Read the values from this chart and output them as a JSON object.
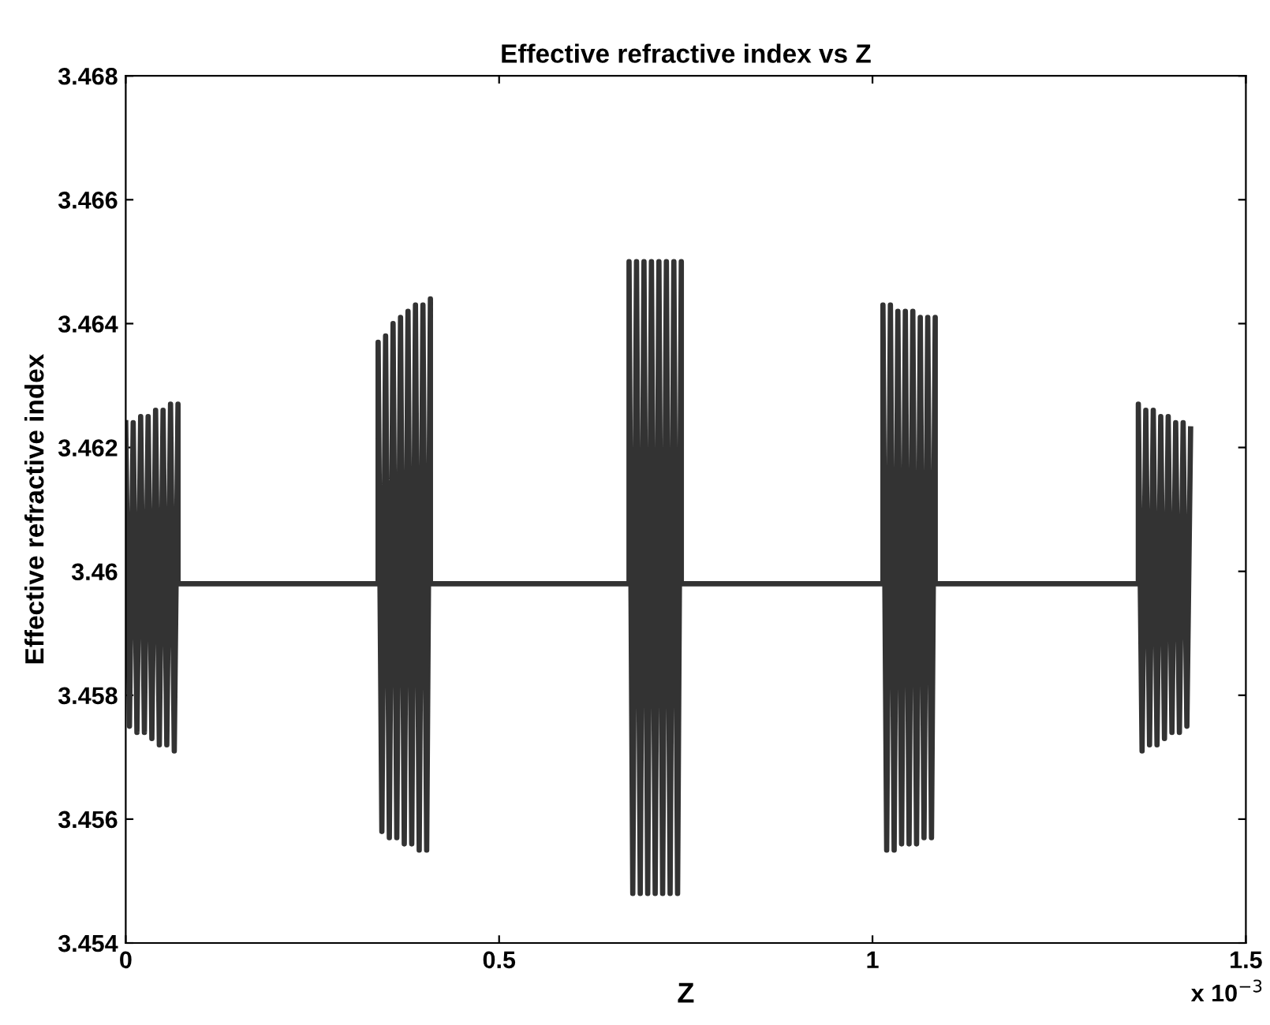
{
  "chart_data": {
    "type": "line",
    "title": "Effective refractive index vs Z",
    "xlabel": "Z",
    "ylabel": "Effective refractive index",
    "annotations": [
      "x 10$^{−3}$"
    ],
    "x": [
      0,
      0.005,
      0.01,
      0.015,
      0.02,
      0.025,
      0.03,
      0.035,
      0.04,
      0.045,
      0.05,
      0.055,
      0.06,
      0.065,
      0.07,
      0.07,
      0.338,
      0.338,
      0.343,
      0.348,
      0.353,
      0.358,
      0.363,
      0.368,
      0.373,
      0.378,
      0.383,
      0.388,
      0.393,
      0.398,
      0.403,
      0.408,
      0.408,
      0.674,
      0.674,
      0.679,
      0.684,
      0.689,
      0.694,
      0.699,
      0.704,
      0.709,
      0.714,
      0.719,
      0.724,
      0.729,
      0.734,
      0.739,
      0.744,
      0.744,
      1.014,
      1.014,
      1.019,
      1.024,
      1.029,
      1.034,
      1.039,
      1.044,
      1.049,
      1.054,
      1.059,
      1.064,
      1.069,
      1.074,
      1.079,
      1.084,
      1.084,
      1.356,
      1.356,
      1.361,
      1.366,
      1.371,
      1.376,
      1.381,
      1.386,
      1.391,
      1.396,
      1.401,
      1.406,
      1.411,
      1.416,
      1.421,
      1.426
    ],
    "series": [
      {
        "color": "#333333",
        "values": [
          3.4624,
          3.4575,
          3.4624,
          3.4574,
          3.4625,
          3.4574,
          3.4625,
          3.4573,
          3.4626,
          3.4572,
          3.4626,
          3.4572,
          3.4627,
          3.4571,
          3.4627,
          3.4598,
          3.4598,
          3.4637,
          3.4558,
          3.4638,
          3.4557,
          3.464,
          3.4557,
          3.4641,
          3.4556,
          3.4642,
          3.4556,
          3.4643,
          3.4555,
          3.4643,
          3.4555,
          3.4644,
          3.4598,
          3.4598,
          3.465,
          3.4548,
          3.465,
          3.4548,
          3.465,
          3.4548,
          3.465,
          3.4548,
          3.465,
          3.4548,
          3.465,
          3.4548,
          3.465,
          3.4548,
          3.465,
          3.4598,
          3.4598,
          3.4643,
          3.4555,
          3.4643,
          3.4555,
          3.4642,
          3.4556,
          3.4642,
          3.4556,
          3.4642,
          3.4556,
          3.4641,
          3.4557,
          3.4641,
          3.4557,
          3.4641,
          3.4598,
          3.4598,
          3.4627,
          3.4571,
          3.4626,
          3.4572,
          3.4626,
          3.4572,
          3.4625,
          3.4573,
          3.4625,
          3.4574,
          3.4624,
          3.4574,
          3.4624,
          3.4575,
          3.4623
        ]
      }
    ],
    "xlim": [
      0,
      1.5
    ],
    "ylim": [
      3.454,
      3.468
    ],
    "xticks": [
      0,
      0.5,
      1,
      1.5
    ],
    "yticks": [
      3.454,
      3.456,
      3.458,
      3.46,
      3.462,
      3.464,
      3.466,
      3.468
    ]
  }
}
